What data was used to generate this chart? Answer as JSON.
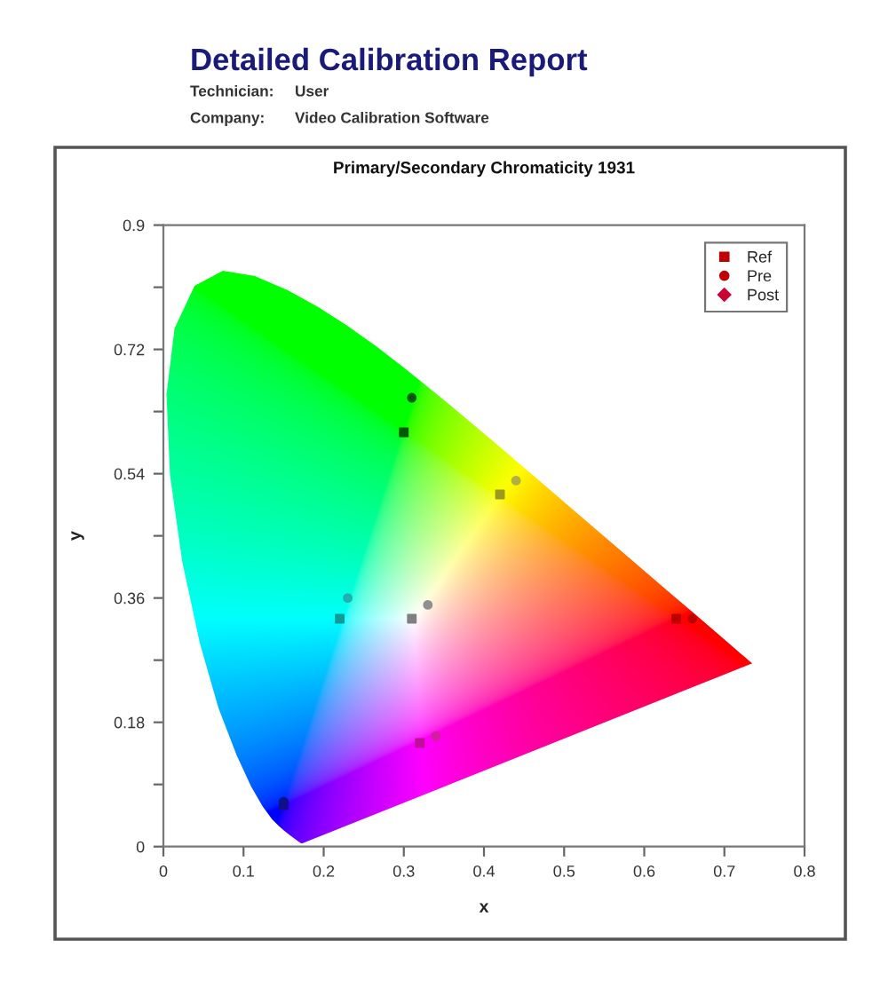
{
  "chart_data": {
    "type": "scatter",
    "title": "Primary/Secondary Chromaticity 1931",
    "xlabel": "x",
    "ylabel": "y",
    "annotations": [
      "Detailed Calibration Report",
      "Technician:",
      "User",
      "Company:",
      "Video Calibration Software"
    ],
    "xlim": [
      0,
      0.8
    ],
    "ylim": [
      0,
      0.9
    ],
    "xticks": [
      0,
      0.1,
      0.2,
      0.3,
      0.4,
      0.5,
      0.6,
      0.7,
      0.8
    ],
    "yticks": [
      0,
      {
        "value": 0.09,
        "label": null
      },
      0.18,
      {
        "value": 0.27,
        "label": null
      },
      0.36,
      {
        "value": 0.45,
        "label": null
      },
      0.54,
      {
        "value": 0.63,
        "label": null
      },
      0.72,
      {
        "value": 0.81,
        "label": null
      },
      0.9
    ],
    "legend": "top right",
    "grid": false,
    "series": [
      {
        "name": "Ref",
        "marker": "square",
        "color": "#c00000",
        "colors": [
          "#c00000",
          "#005a00",
          "#10108a",
          "#109a9a",
          "#c0109a",
          "#9a9a20",
          "#808080"
        ],
        "x": [
          0.64,
          0.3,
          0.15,
          0.22,
          0.32,
          0.42,
          0.31
        ],
        "values": [
          0.33,
          0.6,
          0.06,
          0.33,
          0.15,
          0.51,
          0.33
        ]
      },
      {
        "name": "Pre",
        "marker": "circle",
        "color": "#c00000",
        "colors": [
          "#c00000",
          "#005a00",
          "#10108a",
          "#20b0b0",
          "#d020a0",
          "#b0b040",
          "#909090"
        ],
        "x": [
          0.66,
          0.31,
          0.15,
          0.23,
          0.34,
          0.44,
          0.33
        ],
        "values": [
          0.33,
          0.65,
          0.065,
          0.36,
          0.16,
          0.53,
          0.35
        ]
      },
      {
        "name": "Post",
        "marker": "diamond",
        "color": "#cc0033",
        "x": [
          null,
          null,
          null,
          null,
          null,
          null,
          null
        ],
        "values": [
          null,
          null,
          null,
          null,
          null,
          null,
          null
        ]
      }
    ]
  }
}
